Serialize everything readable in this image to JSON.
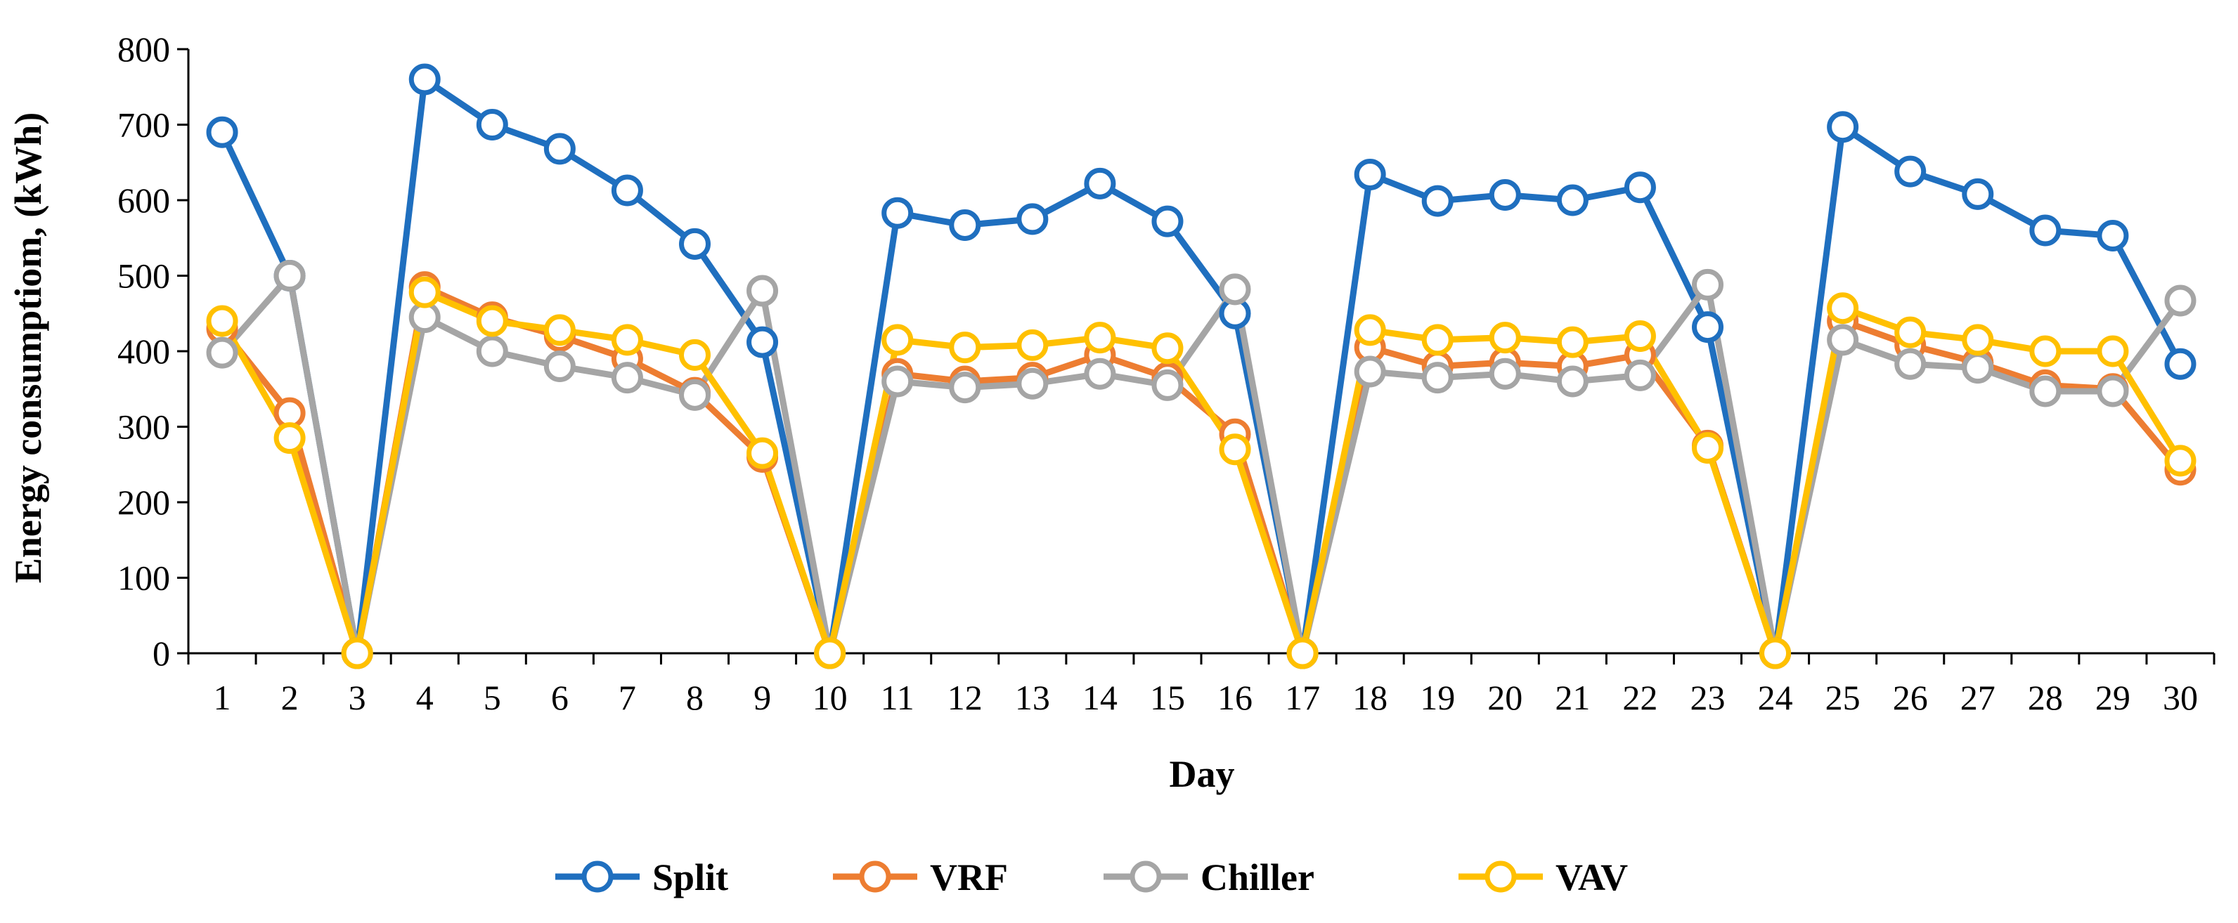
{
  "chart_data": {
    "type": "line",
    "title": "",
    "xlabel": "Day",
    "ylabel": "Energy consumptiom, (kWh)",
    "ylim": [
      0,
      800
    ],
    "yticks": [
      0,
      100,
      200,
      300,
      400,
      500,
      600,
      700,
      800
    ],
    "grid": false,
    "legend_position": "bottom",
    "categories": [
      "1",
      "2",
      "3",
      "4",
      "5",
      "6",
      "7",
      "8",
      "9",
      "10",
      "11",
      "12",
      "13",
      "14",
      "15",
      "16",
      "17",
      "18",
      "19",
      "20",
      "21",
      "22",
      "23",
      "24",
      "25",
      "26",
      "27",
      "28",
      "29",
      "30"
    ],
    "series": [
      {
        "name": "Split",
        "color": "#1F6FBF",
        "values": [
          690,
          500,
          0,
          760,
          700,
          668,
          613,
          542,
          412,
          0,
          583,
          567,
          575,
          622,
          572,
          450,
          0,
          634,
          599,
          607,
          600,
          617,
          432,
          0,
          697,
          638,
          608,
          560,
          553,
          383
        ]
      },
      {
        "name": "VRF",
        "color": "#ED7D31",
        "values": [
          430,
          318,
          0,
          485,
          445,
          420,
          390,
          345,
          260,
          0,
          370,
          360,
          365,
          395,
          365,
          290,
          0,
          405,
          380,
          385,
          380,
          395,
          275,
          0,
          440,
          408,
          385,
          355,
          350,
          243
        ]
      },
      {
        "name": "Chiller",
        "color": "#A5A5A5",
        "values": [
          398,
          500,
          0,
          445,
          400,
          380,
          365,
          342,
          480,
          0,
          360,
          352,
          357,
          370,
          355,
          482,
          0,
          373,
          365,
          370,
          360,
          368,
          488,
          0,
          415,
          383,
          378,
          347,
          347,
          467
        ]
      },
      {
        "name": "VAV",
        "color": "#FFC000",
        "values": [
          440,
          285,
          0,
          478,
          440,
          428,
          415,
          395,
          265,
          0,
          415,
          405,
          408,
          418,
          404,
          270,
          0,
          428,
          415,
          418,
          412,
          420,
          272,
          0,
          457,
          425,
          415,
          400,
          400,
          255
        ]
      }
    ]
  }
}
